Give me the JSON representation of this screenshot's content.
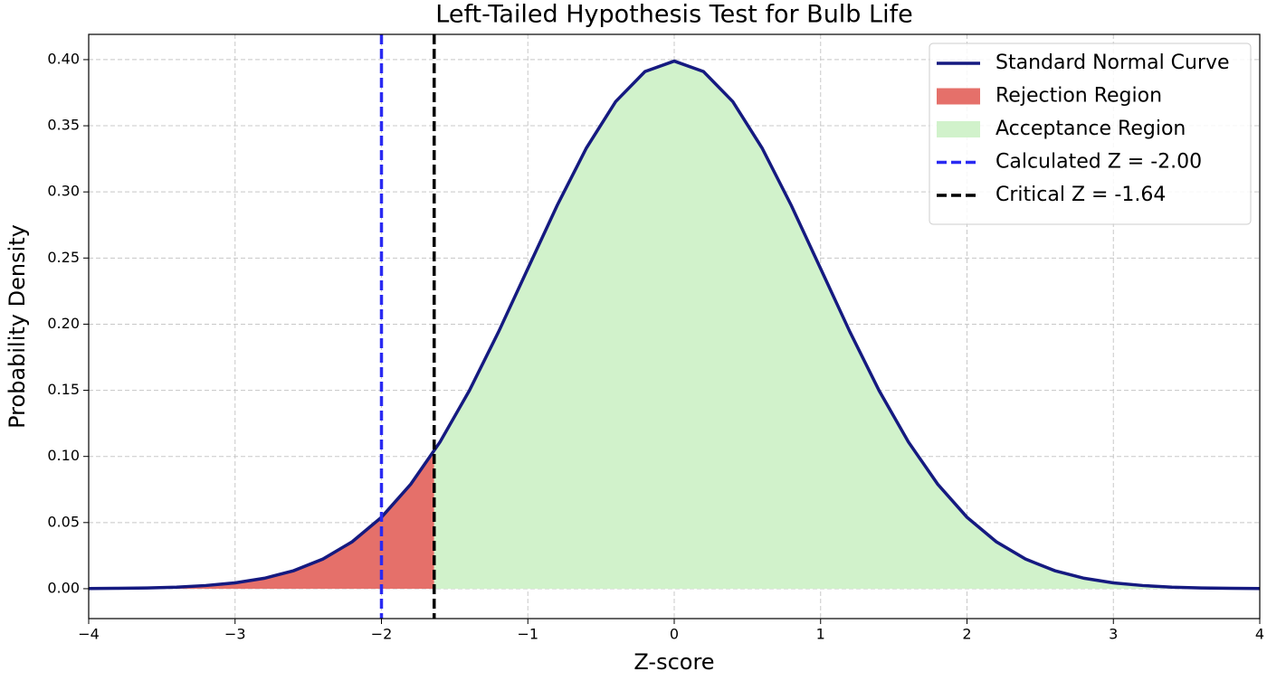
{
  "chart_data": {
    "type": "distribution",
    "title": "Left-Tailed Hypothesis Test for Bulb Life",
    "xlabel": "Z-score",
    "ylabel": "Probability Density",
    "xlim": [
      -4,
      4
    ],
    "ylim": [
      -0.0226,
      0.4191
    ],
    "xticks": [
      {
        "value": -4,
        "label": "−4"
      },
      {
        "value": -3,
        "label": "−3"
      },
      {
        "value": -2,
        "label": "−2"
      },
      {
        "value": -1,
        "label": "−1"
      },
      0,
      1,
      2,
      3,
      4
    ],
    "yticks": [
      {
        "value": 0,
        "label": "0.00"
      },
      {
        "value": 0.05,
        "label": "0.05"
      },
      {
        "value": 0.1,
        "label": "0.10"
      },
      {
        "value": 0.15,
        "label": "0.15"
      },
      {
        "value": 0.2,
        "label": "0.20"
      },
      {
        "value": 0.25,
        "label": "0.25"
      },
      {
        "value": 0.3,
        "label": "0.30"
      },
      {
        "value": 0.35,
        "label": "0.35"
      },
      {
        "value": 0.4,
        "label": "0.40"
      }
    ],
    "grid": true,
    "legend": "upper right",
    "series": [
      {
        "name": "Standard Normal Curve",
        "kind": "line",
        "color": "#151a80",
        "x": [
          -4,
          -3.8,
          -3.6,
          -3.4,
          -3.2,
          -3,
          -2.8,
          -2.6,
          -2.4,
          -2.2,
          -2,
          -1.8,
          -1.6,
          -1.4,
          -1.2,
          -1,
          -0.8,
          -0.6,
          -0.4,
          -0.2,
          0,
          0.2,
          0.4,
          0.6,
          0.8,
          1,
          1.2,
          1.4,
          1.6,
          1.8,
          2,
          2.2,
          2.4,
          2.6,
          2.8,
          3,
          3.2,
          3.4,
          3.6,
          3.8,
          4
        ],
        "values": [
          0.0001,
          0.0003,
          0.0006,
          0.0012,
          0.0024,
          0.0044,
          0.0079,
          0.0136,
          0.0224,
          0.0355,
          0.054,
          0.079,
          0.1109,
          0.1497,
          0.1942,
          0.242,
          0.2897,
          0.3332,
          0.3683,
          0.391,
          0.3989,
          0.391,
          0.3683,
          0.3332,
          0.2897,
          0.242,
          0.1942,
          0.1497,
          0.1109,
          0.079,
          0.054,
          0.0355,
          0.0224,
          0.0136,
          0.0079,
          0.0044,
          0.0024,
          0.0012,
          0.0006,
          0.0003,
          0.0001
        ]
      },
      {
        "name": "Rejection Region",
        "kind": "area",
        "color": "#e5706a",
        "x": [
          -4,
          -3.8,
          -3.6,
          -3.4,
          -3.2,
          -3,
          -2.8,
          -2.6,
          -2.4,
          -2.2,
          -2,
          -1.8,
          -1.64
        ],
        "values": [
          0.0001,
          0.0003,
          0.0006,
          0.0012,
          0.0024,
          0.0044,
          0.0079,
          0.0136,
          0.0224,
          0.0355,
          0.054,
          0.079,
          0.104
        ]
      },
      {
        "name": "Acceptance Region",
        "kind": "area",
        "color": "#d1f2cb",
        "x": [
          -1.64,
          -1.6,
          -1.4,
          -1.2,
          -1,
          -0.8,
          -0.6,
          -0.4,
          -0.2,
          0,
          0.2,
          0.4,
          0.6,
          0.8,
          1,
          1.2,
          1.4,
          1.6,
          1.8,
          2,
          2.2,
          2.4,
          2.6,
          2.8,
          3,
          3.2,
          3.4,
          3.6,
          3.8,
          4
        ],
        "values": [
          0.104,
          0.1109,
          0.1497,
          0.1942,
          0.242,
          0.2897,
          0.3332,
          0.3683,
          0.391,
          0.3989,
          0.391,
          0.3683,
          0.3332,
          0.2897,
          0.242,
          0.1942,
          0.1497,
          0.1109,
          0.079,
          0.054,
          0.0355,
          0.0224,
          0.0136,
          0.0079,
          0.0044,
          0.0024,
          0.0012,
          0.0006,
          0.0003,
          0.0001
        ]
      },
      {
        "name": "Calculated Z = -2.00",
        "kind": "vline",
        "color": "#2a2af2",
        "value": -2
      },
      {
        "name": "Critical Z = -1.64",
        "kind": "vline",
        "color": "#000000",
        "value": -1.64
      }
    ]
  }
}
